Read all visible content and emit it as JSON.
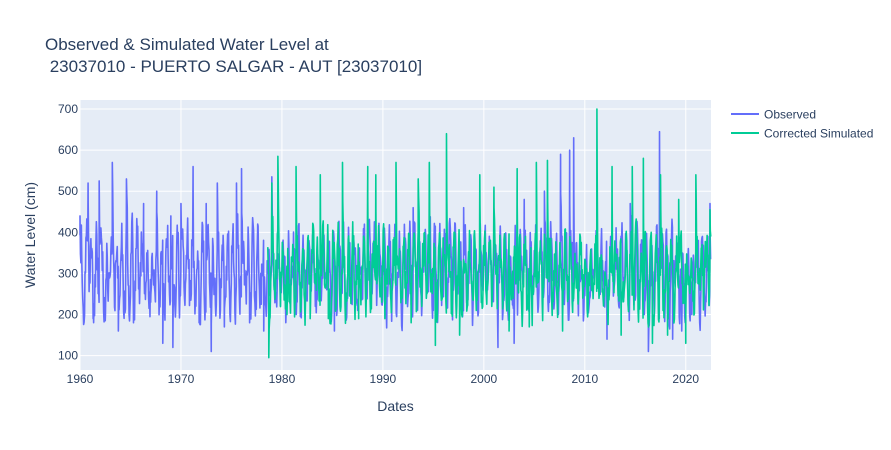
{
  "chart_data": {
    "type": "line",
    "title_line1": "Observed & Simulated Water Level at",
    "title_line2": " 23037010 - PUERTO SALGAR - AUT [23037010]",
    "xlabel": "Dates",
    "ylabel": "Water Level (cm)",
    "xlim": [
      1960,
      2022.5
    ],
    "ylim": [
      65,
      722
    ],
    "x_ticks": [
      1960,
      1970,
      1980,
      1990,
      2000,
      2010,
      2020
    ],
    "y_ticks": [
      100,
      200,
      300,
      400,
      500,
      600,
      700
    ],
    "grid": true,
    "legend_position": "top-right",
    "series": [
      {
        "name": "Observed",
        "color": "#636efa",
        "x_range": [
          1960,
          2022.5
        ],
        "anchor_points": [
          [
            1960.0,
            440
          ],
          [
            1960.8,
            520
          ],
          [
            1961.3,
            190
          ],
          [
            1961.9,
            525
          ],
          [
            1962.5,
            185
          ],
          [
            1963.2,
            570
          ],
          [
            1963.8,
            160
          ],
          [
            1964.6,
            530
          ],
          [
            1965.3,
            180
          ],
          [
            1966.3,
            470
          ],
          [
            1967.0,
            230
          ],
          [
            1967.6,
            500
          ],
          [
            1968.2,
            130
          ],
          [
            1969.0,
            440
          ],
          [
            1969.2,
            120
          ],
          [
            1970.0,
            470
          ],
          [
            1971.2,
            560
          ],
          [
            1971.8,
            180
          ],
          [
            1972.5,
            470
          ],
          [
            1973.0,
            110
          ],
          [
            1973.6,
            520
          ],
          [
            1974.3,
            170
          ],
          [
            1975.5,
            520
          ],
          [
            1976.0,
            555
          ],
          [
            1976.8,
            180
          ],
          [
            1977.6,
            420
          ],
          [
            1978.2,
            160
          ],
          [
            1978.6,
            300
          ],
          [
            1979.0,
            535
          ],
          [
            1980.2,
            250
          ],
          [
            1985.2,
            160
          ],
          [
            1987.5,
            210
          ],
          [
            1990.0,
            330
          ],
          [
            1993.0,
            460
          ],
          [
            1995.0,
            210
          ],
          [
            1998.0,
            460
          ],
          [
            2000.5,
            350
          ],
          [
            2001.4,
            120
          ],
          [
            2003.0,
            130
          ],
          [
            2004.0,
            480
          ],
          [
            2006.0,
            500
          ],
          [
            2007.6,
            590
          ],
          [
            2008.5,
            600
          ],
          [
            2008.9,
            630
          ],
          [
            2010.5,
            240
          ],
          [
            2012.2,
            140
          ],
          [
            2014.5,
            470
          ],
          [
            2016.3,
            110
          ],
          [
            2017.4,
            645
          ],
          [
            2018.7,
            140
          ],
          [
            2019.6,
            160
          ],
          [
            2020.6,
            200
          ],
          [
            2021.0,
            400
          ],
          [
            2022.4,
            470
          ]
        ],
        "amplitude": 140,
        "base": 305
      },
      {
        "name": "Corrected Simulated",
        "color": "#00cc96",
        "x_range": [
          1978.6,
          2022.5
        ],
        "anchor_points": [
          [
            1978.7,
            95
          ],
          [
            1979.0,
            520
          ],
          [
            1979.6,
            585
          ],
          [
            1980.5,
            200
          ],
          [
            1981.4,
            560
          ],
          [
            1982.8,
            190
          ],
          [
            1983.8,
            540
          ],
          [
            1984.6,
            190
          ],
          [
            1986.0,
            570
          ],
          [
            1987.6,
            190
          ],
          [
            1988.5,
            560
          ],
          [
            1989.3,
            540
          ],
          [
            1990.2,
            190
          ],
          [
            1991.3,
            570
          ],
          [
            1992.8,
            180
          ],
          [
            1993.5,
            530
          ],
          [
            1994.6,
            570
          ],
          [
            1995.2,
            125
          ],
          [
            1996.3,
            640
          ],
          [
            1997.6,
            150
          ],
          [
            1999.6,
            540
          ],
          [
            2001.0,
            510
          ],
          [
            2002.5,
            160
          ],
          [
            2003.3,
            555
          ],
          [
            2004.5,
            170
          ],
          [
            2005.2,
            570
          ],
          [
            2006.3,
            575
          ],
          [
            2007.8,
            160
          ],
          [
            2009.8,
            240
          ],
          [
            2011.2,
            700
          ],
          [
            2012.7,
            560
          ],
          [
            2013.6,
            150
          ],
          [
            2014.7,
            560
          ],
          [
            2015.8,
            580
          ],
          [
            2016.7,
            130
          ],
          [
            2017.5,
            540
          ],
          [
            2018.2,
            150
          ],
          [
            2019.3,
            480
          ],
          [
            2020.0,
            130
          ],
          [
            2021.0,
            540
          ],
          [
            2022.4,
            455
          ]
        ],
        "amplitude": 135,
        "base": 300
      }
    ]
  }
}
